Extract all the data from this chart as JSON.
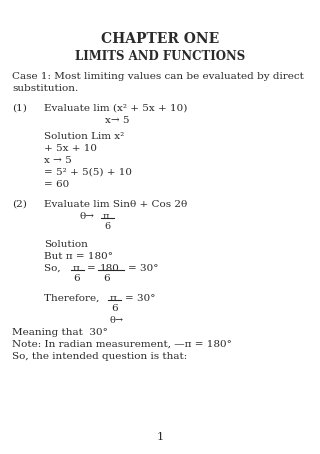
{
  "bg_color": "#ffffff",
  "text_color": "#2a2a2a",
  "page_width": 3.2,
  "page_height": 4.54,
  "dpi": 100,
  "title": "CHAPTER ONE",
  "subtitle": "LIMITS AND FUNCTIONS",
  "page_number": "1"
}
